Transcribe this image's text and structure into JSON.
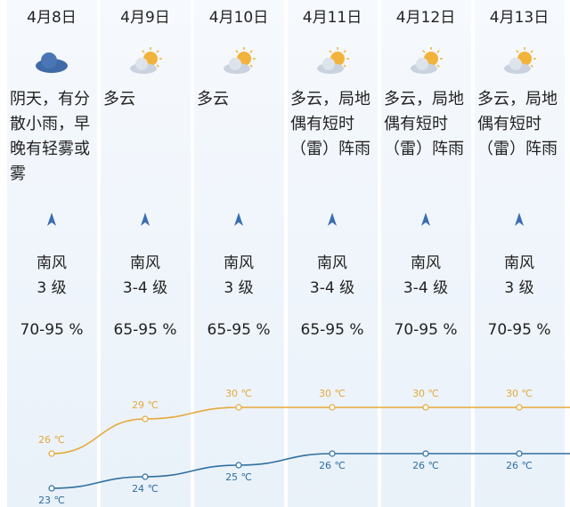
{
  "days": [
    {
      "date": "4月8日",
      "weather": "阴天，有分散小雨，早晚有轻雾或雾",
      "wind_dir": "南风",
      "wind_level": "3 级",
      "humidity": "70-95 %"
    },
    {
      "date": "4月9日",
      "weather": "多云",
      "wind_dir": "南风",
      "wind_level": "3-4 级",
      "humidity": "65-95 %"
    },
    {
      "date": "4月10日",
      "weather": "多云",
      "wind_dir": "南风",
      "wind_level": "3 级",
      "humidity": "65-95 %"
    },
    {
      "date": "4月11日",
      "weather": "多云，局地偶有短时（雷）阵雨",
      "wind_dir": "南风",
      "wind_level": "3-4 级",
      "humidity": "65-95 %"
    },
    {
      "date": "4月12日",
      "weather": "多云，局地偶有短时（雷）阵雨",
      "wind_dir": "南风",
      "wind_level": "3-4 级",
      "humidity": "70-95 %"
    },
    {
      "date": "4月13日",
      "weather": "多云，局地偶有短时（雷）阵雨",
      "wind_dir": "南风",
      "wind_level": "3 级",
      "humidity": "70-95 %"
    }
  ],
  "temperature": {
    "high": {
      "color": "#e6a93a",
      "values": [
        26,
        29,
        30,
        30,
        30,
        30
      ],
      "value_labels": [
        "26 ℃",
        "29 ℃",
        "30 ℃",
        "30 ℃",
        "30 ℃",
        "30 ℃"
      ]
    },
    "low": {
      "color": "#2f6f9f",
      "values": [
        23,
        24,
        25,
        26,
        26,
        26
      ],
      "value_labels": [
        "23 ℃",
        "24 ℃",
        "25 ℃",
        "26 ℃",
        "26 ℃",
        "26 ℃"
      ]
    }
  }
}
